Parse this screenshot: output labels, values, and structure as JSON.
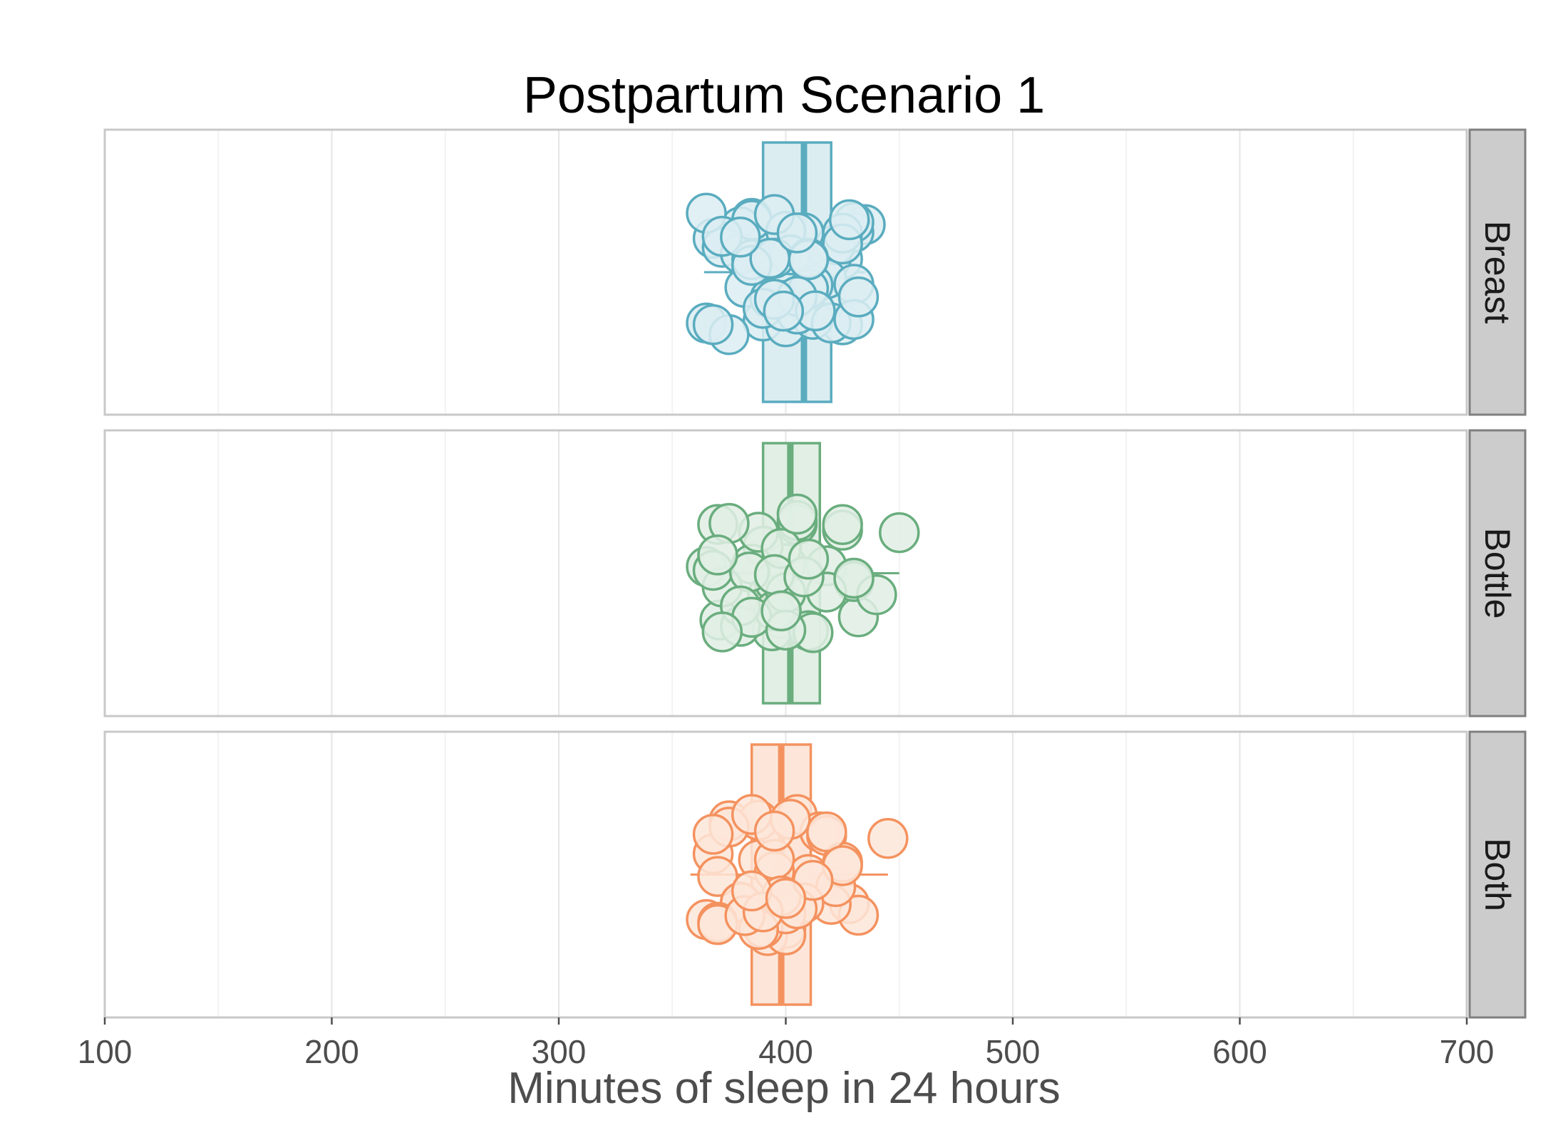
{
  "chart_data": {
    "type": "boxplot-jitter",
    "title": "Postpartum Scenario 1",
    "xlabel": "Minutes of sleep in 24 hours",
    "xlim": [
      100,
      700
    ],
    "x_ticks": [
      100,
      200,
      300,
      400,
      500,
      600,
      700
    ],
    "grid": true,
    "facets": [
      {
        "label": "Breast",
        "color": "#5aacbf",
        "fill": "#dcedf2",
        "box": {
          "q1": 390,
          "median": 408,
          "q3": 420,
          "whisker_low": 364,
          "whisker_high": 435
        },
        "points": [
          390,
          425,
          385,
          425,
          365,
          380,
          420,
          410,
          382,
          368,
          435,
          400,
          420,
          430,
          398,
          422,
          430,
          418,
          372,
          390,
          365,
          412,
          425,
          405,
          398,
          408,
          418,
          380,
          393,
          412,
          385,
          400,
          385,
          395,
          375,
          402,
          410,
          430,
          420,
          425,
          395,
          385,
          410,
          390,
          410,
          393,
          372,
          405,
          405,
          428,
          380,
          395,
          413,
          368,
          430,
          399,
          432
        ]
      },
      {
        "label": "Bottle",
        "color": "#6aad7e",
        "fill": "#e1efe4",
        "box": {
          "q1": 390,
          "median": 402,
          "q3": 415,
          "whisker_low": 366,
          "whisker_high": 450
        },
        "points": [
          370,
          400,
          390,
          430,
          398,
          385,
          392,
          418,
          432,
          371,
          395,
          394,
          430,
          440,
          450,
          388,
          425,
          380,
          405,
          365,
          372,
          395,
          410,
          400,
          418,
          375,
          368,
          405,
          398,
          384,
          395,
          412,
          425,
          370,
          408,
          380,
          405,
          410,
          385,
          400,
          372,
          398,
          430
        ]
      },
      {
        "label": "Both",
        "color": "#f4925f",
        "fill": "#fde6d9",
        "box": {
          "q1": 385,
          "median": 398,
          "q3": 411,
          "whisker_low": 358,
          "whisker_high": 445
        },
        "points": [
          368,
          400,
          410,
          428,
          432,
          380,
          392,
          388,
          375,
          370,
          405,
          400,
          420,
          415,
          365,
          388,
          445,
          375,
          390,
          422,
          418,
          380,
          408,
          395,
          370,
          385,
          425,
          400,
          370,
          395,
          388,
          405,
          382,
          398,
          402,
          418,
          425,
          368,
          390,
          385,
          412,
          395,
          400
        ]
      }
    ]
  }
}
